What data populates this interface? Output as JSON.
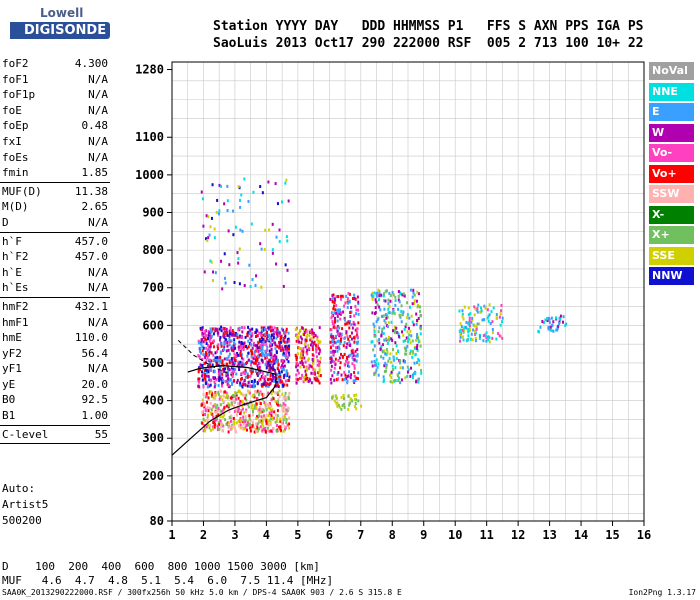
{
  "logo": {
    "line1": "Lowell",
    "line2": "DIGISONDE"
  },
  "header": {
    "row1": "Station YYYY DAY   DDD HHMMSS P1   FFS S AXN PPS IGA PS",
    "row2": "SaoLuis 2013 Oct17 290 222000 RSF  005 2 713 100 10+ 22"
  },
  "params": [
    {
      "k": "foF2",
      "v": "4.300"
    },
    {
      "k": "foF1",
      "v": "N/A"
    },
    {
      "k": "foF1p",
      "v": "N/A"
    },
    {
      "k": "foE",
      "v": "N/A"
    },
    {
      "k": "foEp",
      "v": "0.48"
    },
    {
      "k": "fxI",
      "v": "N/A"
    },
    {
      "k": "foEs",
      "v": "N/A"
    },
    {
      "k": "fmin",
      "v": "1.85"
    },
    {
      "sep": true
    },
    {
      "k": "MUF(D)",
      "v": "11.38"
    },
    {
      "k": "M(D)",
      "v": "2.65"
    },
    {
      "k": "D",
      "v": "N/A"
    },
    {
      "sep": true
    },
    {
      "k": "h`F",
      "v": "457.0"
    },
    {
      "k": "h`F2",
      "v": "457.0"
    },
    {
      "k": "h`E",
      "v": "N/A"
    },
    {
      "k": "h`Es",
      "v": "N/A"
    },
    {
      "sep": true
    },
    {
      "k": "hmF2",
      "v": "432.1"
    },
    {
      "k": "hmF1",
      "v": "N/A"
    },
    {
      "k": "hmE",
      "v": "110.0"
    },
    {
      "k": "yF2",
      "v": "56.4"
    },
    {
      "k": "yF1",
      "v": "N/A"
    },
    {
      "k": "yE",
      "v": "20.0"
    },
    {
      "k": "B0",
      "v": "92.5"
    },
    {
      "k": "B1",
      "v": "1.00"
    },
    {
      "sep": true
    },
    {
      "k": "C-level",
      "v": "55"
    },
    {
      "sep": true
    }
  ],
  "auto": {
    "l1": "Auto:",
    "l2": "Artist5",
    "l3": "500200"
  },
  "legend": [
    {
      "label": "NoVal",
      "color": "#a0a0a0"
    },
    {
      "label": "NNE",
      "color": "#00e0e0"
    },
    {
      "label": "E",
      "color": "#3aa0ff"
    },
    {
      "label": "W",
      "color": "#b000b0"
    },
    {
      "label": "Vo-",
      "color": "#ff40c0"
    },
    {
      "label": "Vo+",
      "color": "#ff0000"
    },
    {
      "label": "SSW",
      "color": "#ffb0b0"
    },
    {
      "label": "X-",
      "color": "#008000"
    },
    {
      "label": "X+",
      "color": "#70c060"
    },
    {
      "label": "SSE",
      "color": "#d0d000"
    },
    {
      "label": "NNW",
      "color": "#1010d0"
    }
  ],
  "muf": {
    "row1": "D    100  200  400  600  800 1000 1500 3000 [km]",
    "row2": "MUF   4.6  4.7  4.8  5.1  5.4  6.0  7.5 11.4 [MHz]"
  },
  "footer": {
    "left": "SAA0K_2013290222000.RSF / 300fx256h 50 kHz 5.0 km / DPS-4 SAA0K 903 / 2.6 S 315.8 E",
    "right": "Ion2Png 1.3.17"
  },
  "chart_data": {
    "type": "scatter",
    "xlabel": "",
    "ylabel": "",
    "xlim": [
      1,
      16
    ],
    "ylim": [
      80,
      1300
    ],
    "x_ticks": [
      1,
      2,
      3,
      4,
      5,
      6,
      7,
      8,
      9,
      10,
      11,
      12,
      13,
      14,
      15,
      16
    ],
    "y_ticks": [
      80,
      200,
      300,
      400,
      500,
      600,
      700,
      800,
      900,
      1000,
      1100,
      1280
    ],
    "grid": true,
    "clusters": [
      {
        "x": [
          1.8,
          4.7
        ],
        "y": [
          440,
          600
        ],
        "colors": [
          "#b000b0",
          "#ff40c0",
          "#ff0000",
          "#1010d0",
          "#3aa0ff"
        ],
        "n": 900
      },
      {
        "x": [
          1.9,
          4.7
        ],
        "y": [
          320,
          430
        ],
        "colors": [
          "#d0d000",
          "#ff0000",
          "#ff40c0",
          "#70c060",
          "#ffb0b0"
        ],
        "n": 500
      },
      {
        "x": [
          4.9,
          5.7
        ],
        "y": [
          450,
          600
        ],
        "colors": [
          "#ff40c0",
          "#b000b0",
          "#d0d000",
          "#ff0000"
        ],
        "n": 180
      },
      {
        "x": [
          6.0,
          6.9
        ],
        "y": [
          450,
          690
        ],
        "colors": [
          "#ff40c0",
          "#ff0000",
          "#b000b0",
          "#3aa0ff"
        ],
        "n": 260
      },
      {
        "x": [
          7.3,
          8.9
        ],
        "y": [
          450,
          700
        ],
        "colors": [
          "#3aa0ff",
          "#00e0e0",
          "#d0d000",
          "#b000b0",
          "#70c060"
        ],
        "n": 320
      },
      {
        "x": [
          10.1,
          11.5
        ],
        "y": [
          560,
          660
        ],
        "colors": [
          "#3aa0ff",
          "#00e0e0",
          "#d0d000",
          "#ff40c0"
        ],
        "n": 120
      },
      {
        "x": [
          12.6,
          13.5
        ],
        "y": [
          585,
          630
        ],
        "colors": [
          "#3aa0ff",
          "#00e0e0",
          "#b000b0"
        ],
        "n": 40
      },
      {
        "x": [
          1.9,
          4.7
        ],
        "y": [
          700,
          1000
        ],
        "colors": [
          "#d0d000",
          "#00e0e0",
          "#b000b0",
          "#1010d0",
          "#3aa0ff"
        ],
        "n": 90
      },
      {
        "x": [
          6.0,
          7.0
        ],
        "y": [
          380,
          420
        ],
        "colors": [
          "#d0d000",
          "#70c060"
        ],
        "n": 40
      }
    ],
    "profile_solid": [
      [
        1,
        255
      ],
      [
        1.6,
        300
      ],
      [
        2.2,
        345
      ],
      [
        2.8,
        375
      ],
      [
        3.3,
        390
      ],
      [
        4.0,
        408
      ],
      [
        4.3,
        440
      ],
      [
        4.3,
        470
      ],
      [
        3.4,
        488
      ],
      [
        2.6,
        493
      ],
      [
        1.9,
        486
      ],
      [
        1.5,
        476
      ]
    ],
    "profile_dashed": [
      [
        1.2,
        560
      ],
      [
        1.7,
        520
      ],
      [
        2.3,
        490
      ],
      [
        2.9,
        468
      ]
    ]
  }
}
